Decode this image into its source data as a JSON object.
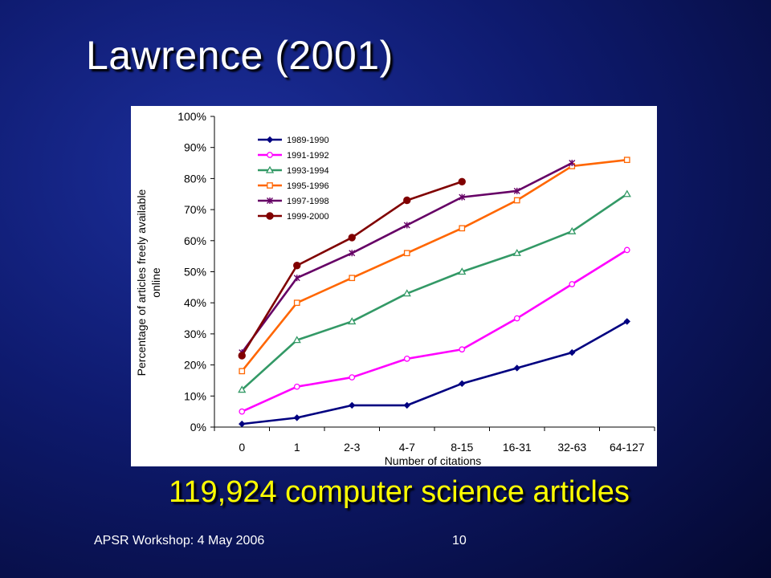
{
  "slide": {
    "title": "Lawrence (2001)",
    "caption": "119,924 computer science articles",
    "footer_left": "APSR Workshop: 4 May 2006",
    "page_number": "10"
  },
  "chart_data": {
    "type": "line",
    "title": "",
    "xlabel": "Number of citations",
    "ylabel_lines": [
      "Percentage of articles freely available",
      "online"
    ],
    "categories": [
      "0",
      "1",
      "2-3",
      "4-7",
      "8-15",
      "16-31",
      "32-63",
      "64-127"
    ],
    "ylim": [
      0,
      100
    ],
    "y_ticks": [
      "0%",
      "10%",
      "20%",
      "30%",
      "40%",
      "50%",
      "60%",
      "70%",
      "80%",
      "90%",
      "100%"
    ],
    "grid": false,
    "legend_position": "top-left",
    "series": [
      {
        "name": "1989-1990",
        "color": "#000080",
        "marker": "diamond",
        "values": [
          1,
          3,
          7,
          7,
          14,
          19,
          24,
          34
        ]
      },
      {
        "name": "1991-1992",
        "color": "#ff00ff",
        "marker": "circle",
        "values": [
          5,
          13,
          16,
          22,
          25,
          35,
          46,
          57
        ]
      },
      {
        "name": "1993-1994",
        "color": "#339966",
        "marker": "triangle",
        "values": [
          12,
          28,
          34,
          43,
          50,
          56,
          63,
          75
        ]
      },
      {
        "name": "1995-1996",
        "color": "#ff6600",
        "marker": "square",
        "values": [
          18,
          40,
          48,
          56,
          64,
          73,
          84,
          86
        ]
      },
      {
        "name": "1997-1998",
        "color": "#660066",
        "marker": "star",
        "values": [
          24,
          48,
          56,
          65,
          74,
          76,
          85,
          null
        ]
      },
      {
        "name": "1999-2000",
        "color": "#800000",
        "marker": "filled-circle",
        "values": [
          23,
          52,
          61,
          73,
          79,
          null,
          null,
          null
        ]
      }
    ]
  }
}
